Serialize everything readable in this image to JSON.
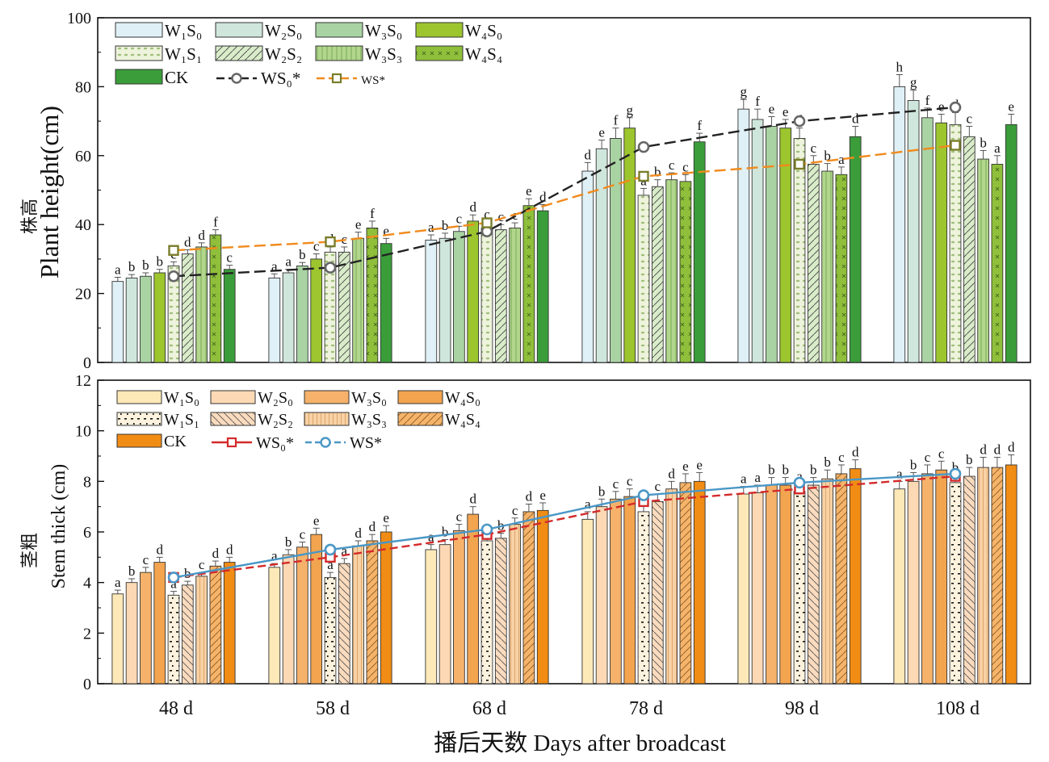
{
  "xlabel": "播后天数 Days after broadcast",
  "chart_data": [
    {
      "type": "bar",
      "ylabel_cn": "株高",
      "ylabel_en": "Plant height(cm)",
      "ylim": [
        0,
        100
      ],
      "yticks": [
        0,
        20,
        40,
        60,
        80,
        100
      ],
      "categories": [
        "48 d",
        "58 d",
        "68 d",
        "78 d",
        "98 d",
        "108 d"
      ],
      "series": [
        {
          "name": "W₁S₀",
          "values": [
            23.5,
            24.5,
            35.5,
            55.5,
            73.5,
            80
          ],
          "errors": [
            1.2,
            1.2,
            1.5,
            2.5,
            2.8,
            3.5
          ],
          "letters": [
            "a",
            "a",
            "a",
            "d",
            "g",
            "h"
          ],
          "fill": "#dff0f6"
        },
        {
          "name": "W₂S₀",
          "values": [
            24.5,
            26,
            36,
            62,
            70.5,
            76
          ],
          "errors": [
            1.0,
            1.0,
            1.5,
            2.5,
            3.0,
            3.0
          ],
          "letters": [
            "b",
            "a",
            "b",
            "e",
            "f",
            "g"
          ],
          "fill": "#cfe6dc"
        },
        {
          "name": "W₃S₀",
          "values": [
            25,
            28,
            38,
            65,
            68.5,
            71
          ],
          "errors": [
            1.0,
            1.0,
            1.5,
            3.0,
            2.8,
            2.8
          ],
          "letters": [
            "b",
            "b",
            "c",
            "f",
            "e",
            "f"
          ],
          "fill": "#a9d3a3"
        },
        {
          "name": "W₄S₀",
          "values": [
            26,
            30,
            41,
            68,
            68,
            69.5
          ],
          "errors": [
            1.0,
            1.5,
            1.8,
            3.0,
            2.5,
            2.5
          ],
          "letters": [
            "b",
            "c",
            "d",
            "g",
            "e",
            "e"
          ],
          "fill": "#9cc52e"
        },
        {
          "name": "W₁S₁",
          "values": [
            28,
            32,
            39,
            48.5,
            65,
            69
          ],
          "errors": [
            1.2,
            1.5,
            1.8,
            2.0,
            3.0,
            3.5
          ],
          "letters": [
            "c",
            "d",
            "c",
            "a",
            "d",
            "d"
          ],
          "fill": "#eef3dc"
        },
        {
          "name": "W₂S₂",
          "values": [
            31.5,
            32,
            38.5,
            51,
            57.5,
            65.5
          ],
          "errors": [
            1.2,
            1.5,
            1.5,
            2.0,
            2.5,
            3.0
          ],
          "letters": [
            "d",
            "c",
            "c",
            "b",
            "c",
            "c"
          ],
          "fill": "#d9ecc9"
        },
        {
          "name": "W₃S₃",
          "values": [
            33.5,
            36,
            39,
            53,
            55.5,
            59
          ],
          "errors": [
            1.2,
            1.8,
            1.5,
            2.0,
            2.2,
            2.5
          ],
          "letters": [
            "d",
            "e",
            "c",
            "c",
            "b",
            "b"
          ],
          "fill": "#b1d68c"
        },
        {
          "name": "W₄S₄",
          "values": [
            37,
            39,
            45.5,
            52.5,
            54.5,
            57.5
          ],
          "errors": [
            1.5,
            2.0,
            2.0,
            2.0,
            2.2,
            2.5
          ],
          "letters": [
            "f",
            "f",
            "e",
            "c",
            "a",
            "a"
          ],
          "fill": "#8fbf3b"
        },
        {
          "name": "CK",
          "values": [
            27,
            34.5,
            44,
            64,
            65.5,
            69
          ],
          "errors": [
            1.2,
            1.5,
            1.8,
            2.5,
            3.0,
            3.0
          ],
          "letters": [
            "c",
            "e",
            "d",
            "f",
            "d",
            "e"
          ],
          "fill": "#3a9d3a"
        }
      ],
      "lines": [
        {
          "name": "WS₀*",
          "values": [
            25,
            27.5,
            38,
            62.5,
            70,
            74
          ],
          "color": "#222222",
          "marker_color": "#666666",
          "marker": "circle"
        },
        {
          "name": "WS*",
          "values": [
            32.5,
            35,
            40.5,
            54,
            57.5,
            63
          ],
          "color": "#f08a1c",
          "marker_color": "#7a7d2a",
          "marker": "square"
        }
      ],
      "legend_extra_label": "CK"
    },
    {
      "type": "bar",
      "ylabel_cn": "茎粗",
      "ylabel_en": "Stem thick (cm)",
      "ylim": [
        0,
        12
      ],
      "yticks": [
        0,
        2,
        4,
        6,
        8,
        10,
        12
      ],
      "categories": [
        "48 d",
        "58 d",
        "68 d",
        "78 d",
        "98 d",
        "108 d"
      ],
      "series": [
        {
          "name": "W₁S₀",
          "values": [
            3.55,
            4.6,
            5.3,
            6.5,
            7.5,
            7.7
          ],
          "errors": [
            0.15,
            0.15,
            0.2,
            0.3,
            0.3,
            0.3
          ],
          "letters": [
            "a",
            "a",
            "a",
            "a",
            "a",
            "a"
          ],
          "fill": "#fde9b8"
        },
        {
          "name": "W₂S₀",
          "values": [
            4.0,
            5.1,
            5.5,
            7.0,
            7.55,
            8.0
          ],
          "errors": [
            0.15,
            0.2,
            0.2,
            0.3,
            0.3,
            0.35
          ],
          "letters": [
            "b",
            "b",
            "b",
            "b",
            "a",
            "b"
          ],
          "fill": "#fcd9b4"
        },
        {
          "name": "W₃S₀",
          "values": [
            4.4,
            5.4,
            6.05,
            7.3,
            7.85,
            8.3
          ],
          "errors": [
            0.2,
            0.2,
            0.25,
            0.3,
            0.3,
            0.35
          ],
          "letters": [
            "c",
            "c",
            "c",
            "c",
            "b",
            "c"
          ],
          "fill": "#f6b26b"
        },
        {
          "name": "W₄S₀",
          "values": [
            4.8,
            5.9,
            6.7,
            7.4,
            7.85,
            8.45
          ],
          "errors": [
            0.2,
            0.25,
            0.3,
            0.3,
            0.3,
            0.35
          ],
          "letters": [
            "d",
            "e",
            "d",
            "c",
            "b",
            "c"
          ],
          "fill": "#f3a44f"
        },
        {
          "name": "W₁S₁",
          "values": [
            3.5,
            4.2,
            5.65,
            6.8,
            7.6,
            7.95
          ],
          "errors": [
            0.15,
            0.2,
            0.2,
            0.25,
            0.3,
            0.3
          ],
          "letters": [
            "a",
            "a",
            "a",
            "a",
            "a",
            "b"
          ],
          "fill": "#fdf2dd"
        },
        {
          "name": "W₂S₂",
          "values": [
            3.9,
            4.75,
            5.75,
            7.2,
            7.85,
            8.2
          ],
          "errors": [
            0.15,
            0.2,
            0.2,
            0.3,
            0.3,
            0.35
          ],
          "letters": [
            "b",
            "a",
            "b",
            "c",
            "b",
            "b"
          ],
          "fill": "#fadbbd"
        },
        {
          "name": "W₃S₃",
          "values": [
            4.25,
            5.45,
            6.3,
            7.7,
            8.1,
            8.55
          ],
          "errors": [
            0.15,
            0.2,
            0.25,
            0.3,
            0.35,
            0.4
          ],
          "letters": [
            "c",
            "d",
            "c",
            "d",
            "b",
            "d"
          ],
          "fill": "#f8d1a4"
        },
        {
          "name": "W₄S₄",
          "values": [
            4.65,
            5.65,
            6.8,
            7.95,
            8.3,
            8.55
          ],
          "errors": [
            0.2,
            0.25,
            0.3,
            0.35,
            0.35,
            0.4
          ],
          "letters": [
            "d",
            "d",
            "d",
            "e",
            "c",
            "d"
          ],
          "fill": "#f6b46a"
        },
        {
          "name": "CK",
          "values": [
            4.8,
            6.0,
            6.85,
            8.0,
            8.5,
            8.65
          ],
          "errors": [
            0.2,
            0.25,
            0.3,
            0.35,
            0.35,
            0.4
          ],
          "letters": [
            "d",
            "e",
            "e",
            "e",
            "d",
            "d"
          ],
          "fill": "#f18c14"
        }
      ],
      "lines": [
        {
          "name": "WS₀*",
          "values": [
            4.2,
            5.0,
            5.9,
            7.2,
            7.7,
            8.2
          ],
          "color": "#d42a2a",
          "marker_color": "#d42a2a",
          "marker": "square"
        },
        {
          "name": "WS*",
          "values": [
            4.2,
            5.3,
            6.1,
            7.45,
            7.95,
            8.3
          ],
          "color": "#4a97c6",
          "marker_color": "#4a97c6",
          "marker": "circle"
        }
      ],
      "legend_extra_label": "CK"
    }
  ]
}
